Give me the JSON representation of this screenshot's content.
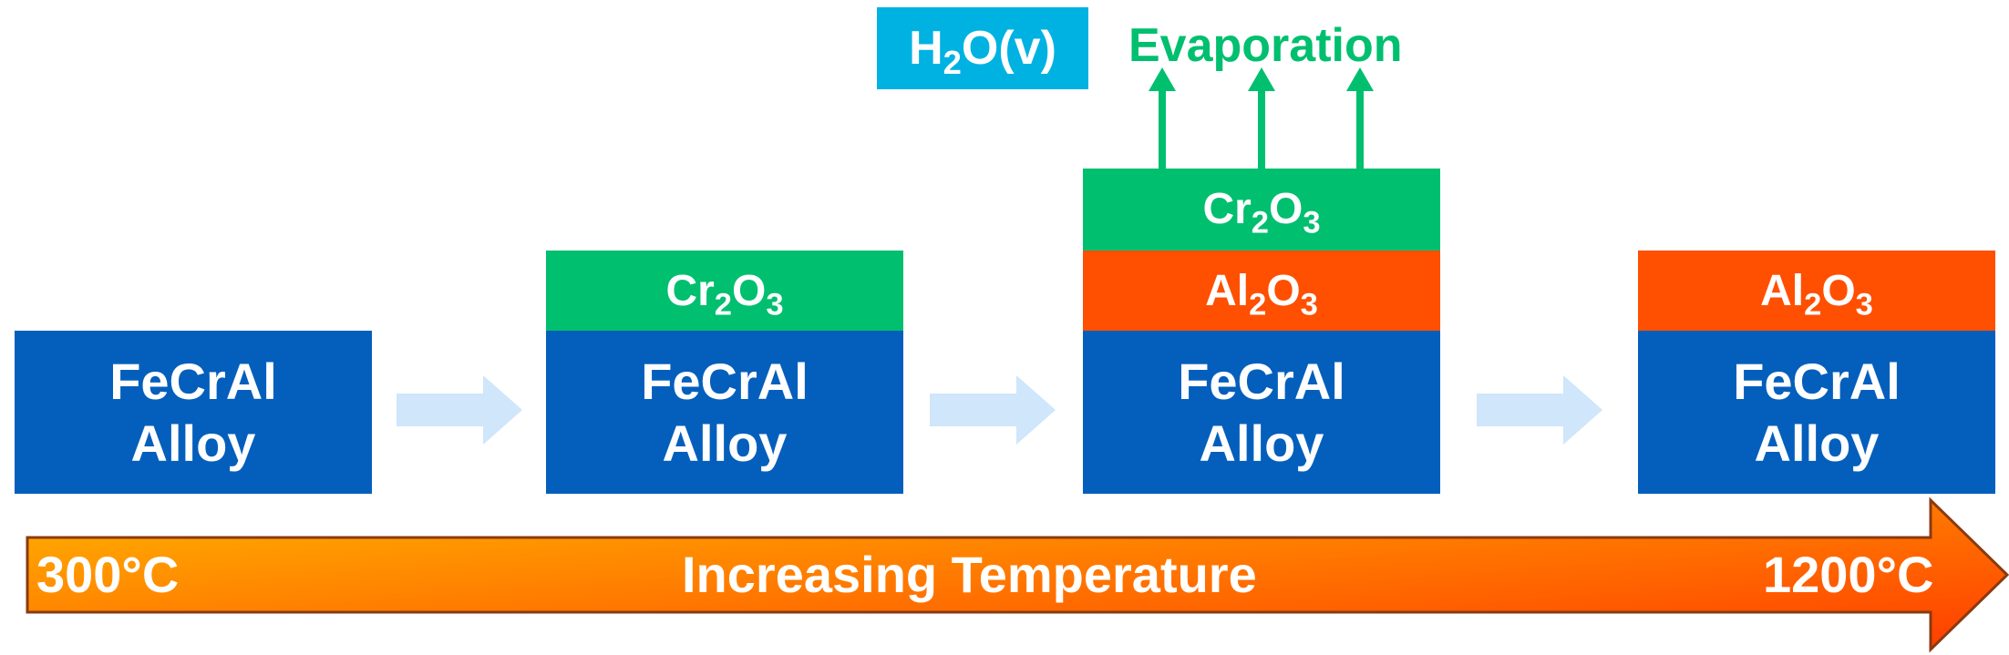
{
  "colors": {
    "alloy": "#045fbc",
    "cr2o3": "#00bf6f",
    "al2o3": "#ff4f00",
    "h2o": "#00b2e2",
    "flow_arrow": "#cfe6fb",
    "evaporation": "#00bf6f",
    "temp_bar_start": "#ffb300",
    "temp_bar_end": "#ff3d00"
  },
  "stages": [
    {
      "alloy_line1": "FeCrAl",
      "alloy_line2": "Alloy"
    },
    {
      "alloy_line1": "FeCrAl",
      "alloy_line2": "Alloy",
      "top_layer": {
        "base1": "Cr",
        "sub1": "2",
        "base2": "O",
        "sub2": "3"
      }
    },
    {
      "alloy_line1": "FeCrAl",
      "alloy_line2": "Alloy",
      "top_layer": {
        "base1": "Cr",
        "sub1": "2",
        "base2": "O",
        "sub2": "3"
      },
      "mid_layer": {
        "base1": "Al",
        "sub1": "2",
        "base2": "O",
        "sub2": "3"
      }
    },
    {
      "alloy_line1": "FeCrAl",
      "alloy_line2": "Alloy",
      "top_layer": {
        "base1": "Al",
        "sub1": "2",
        "base2": "O",
        "sub2": "3"
      }
    }
  ],
  "vapor": {
    "base1": "H",
    "sub1": "2",
    "rest": "O(v)"
  },
  "evaporation_label": "Evaporation",
  "temperature": {
    "start": "300°C",
    "label": "Increasing Temperature",
    "end": "1200°C"
  }
}
